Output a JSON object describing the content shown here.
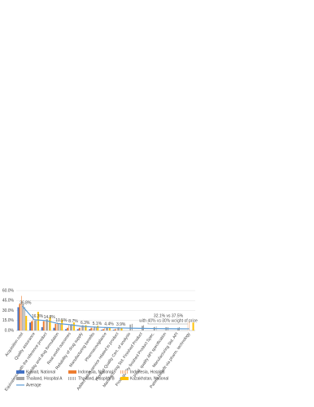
{
  "chart_data": {
    "type": "bar",
    "categories": [
      "Acquisition cost",
      "Quality assurance",
      "Equivalence with the reference product",
      "Stability and drug formulation",
      "Real world outcomes",
      "Reliability of drug supply",
      "Manufacturing benefits",
      "Pharmacovigilance",
      "Added value service related to product",
      "Product Quality Cert. of analysis",
      "Manufacturing Std. Finished Product",
      "Prod. quality finished Product Spec.",
      "Prod. quality API specification",
      "Manufacturing Std. API",
      "Patient benefit via pharm. technology"
    ],
    "series": [
      {
        "name": "Kuwait, National",
        "color": "#4472c4",
        "values": [
          35,
          12,
          5,
          4,
          2,
          2,
          2,
          1,
          1,
          null,
          null,
          null,
          null,
          null,
          null
        ]
      },
      {
        "name": "Indonesia, National",
        "color": "#ed7d31",
        "values": [
          40,
          14,
          14,
          10,
          4,
          4,
          4,
          2,
          2,
          null,
          null,
          null,
          null,
          null,
          null
        ]
      },
      {
        "name": "Indonesia, Hospital",
        "color": "#f4b183",
        "hatched": true,
        "values": [
          52,
          20,
          15,
          12,
          8,
          6,
          3,
          5,
          4,
          null,
          null,
          null,
          null,
          null,
          13
        ]
      },
      {
        "name": "Thailand, Hospital A",
        "color": "#a5a5a5",
        "values": [
          40,
          15,
          17,
          11,
          9,
          8,
          6,
          5,
          5,
          9,
          7,
          5,
          5,
          4,
          null
        ]
      },
      {
        "name": "Thailand, Hospital B",
        "color": "#a5a5a5",
        "hatched": true,
        "values": [
          35,
          16,
          16,
          10,
          10,
          7,
          5,
          5,
          4,
          10,
          8,
          6,
          5,
          5,
          null
        ]
      },
      {
        "name": "Kazakhstan, National",
        "color": "#ffc000",
        "values": [
          22,
          28,
          20,
          16,
          12,
          8,
          7,
          5,
          4,
          null,
          null,
          null,
          null,
          null,
          12
        ]
      },
      {
        "name": "Average",
        "color": "#5b9bd5",
        "line": true,
        "values": [
          36.8,
          16.3,
          14.8,
          10.5,
          8.7,
          6.3,
          5.1,
          4.4,
          3.9,
          3.5,
          3.2,
          3.0,
          2.8,
          2.6,
          2.5
        ],
        "value_labels": [
          "36.8%",
          "16.3%",
          "14.8%",
          "10.5%",
          "8.7%",
          "6.3%",
          "5.1%",
          "4.4%",
          "3.9%",
          null,
          null,
          null,
          null,
          null,
          null
        ]
      }
    ],
    "annotations": [
      "32.1% vs 37.5%",
      "with 40% vs 30% weight of price"
    ],
    "ylim": [
      0,
      60
    ],
    "yticks": [
      {
        "value": 0,
        "label": "0.0%"
      },
      {
        "value": 15,
        "label": "15.0%"
      },
      {
        "value": 30,
        "label": "30.0%"
      },
      {
        "value": 45,
        "label": "45.0%"
      },
      {
        "value": 60,
        "label": "60.0%"
      }
    ],
    "grid": true
  }
}
